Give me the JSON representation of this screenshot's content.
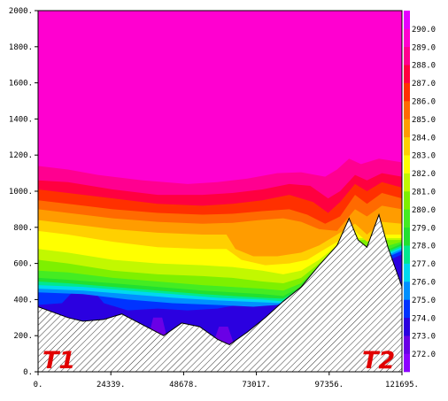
{
  "chart_data": {
    "type": "heatmap",
    "title": "",
    "xlabel": "",
    "ylabel": "",
    "xlim": [
      0,
      121695
    ],
    "ylim": [
      0,
      2000
    ],
    "x_ticks": [
      "0.",
      "24339.",
      "48678.",
      "73017.",
      "97356.",
      "121695."
    ],
    "y_ticks": [
      "0.",
      "200.",
      "400.",
      "600.",
      "800.",
      "1000.",
      "1200.",
      "1400.",
      "1600.",
      "1800.",
      "2000."
    ],
    "colorbar": {
      "levels": [
        "272.0",
        "273.0",
        "274.0",
        "275.0",
        "276.0",
        "277.0",
        "278.0",
        "279.0",
        "280.0",
        "281.0",
        "282.0",
        "283.0",
        "284.0",
        "285.0",
        "286.0",
        "287.0",
        "288.0",
        "289.0",
        "290.0"
      ],
      "colors": [
        "#8c00ff",
        "#6a00e6",
        "#2b00e0",
        "#0033ff",
        "#0090ff",
        "#00d8f0",
        "#00e890",
        "#22e030",
        "#44ec22",
        "#7ef000",
        "#c2f800",
        "#ffff00",
        "#ffd000",
        "#ff9c00",
        "#ff6a00",
        "#ff3000",
        "#ff0040",
        "#ff0090",
        "#ff00d0",
        "#e600ff"
      ]
    },
    "contours": [
      {
        "min": 290,
        "top": [
          [
            0,
            2000
          ],
          [
            121695,
            2000
          ]
        ]
      },
      {
        "min": 289,
        "top": [
          [
            0,
            1140
          ],
          [
            10000,
            1120
          ],
          [
            20000,
            1090
          ],
          [
            35000,
            1060
          ],
          [
            50000,
            1040
          ],
          [
            60000,
            1050
          ],
          [
            70000,
            1070
          ],
          [
            80000,
            1100
          ],
          [
            88000,
            1105
          ],
          [
            96000,
            1080
          ],
          [
            100000,
            1120
          ],
          [
            104000,
            1180
          ],
          [
            108000,
            1150
          ],
          [
            114000,
            1180
          ],
          [
            121695,
            1160
          ]
        ]
      },
      {
        "min": 288,
        "top": [
          [
            0,
            1060
          ],
          [
            10000,
            1050
          ],
          [
            25000,
            1010
          ],
          [
            40000,
            980
          ],
          [
            55000,
            980
          ],
          [
            65000,
            990
          ],
          [
            75000,
            1010
          ],
          [
            84000,
            1040
          ],
          [
            91000,
            1030
          ],
          [
            97000,
            960
          ],
          [
            101000,
            1000
          ],
          [
            106000,
            1090
          ],
          [
            110000,
            1060
          ],
          [
            115000,
            1100
          ],
          [
            121695,
            1080
          ]
        ]
      },
      {
        "min": 287,
        "top": [
          [
            0,
            1010
          ],
          [
            10000,
            990
          ],
          [
            25000,
            960
          ],
          [
            40000,
            930
          ],
          [
            55000,
            920
          ],
          [
            65000,
            930
          ],
          [
            75000,
            950
          ],
          [
            84000,
            980
          ],
          [
            92000,
            940
          ],
          [
            97000,
            880
          ],
          [
            101000,
            940
          ],
          [
            106000,
            1040
          ],
          [
            110000,
            1000
          ],
          [
            115000,
            1050
          ],
          [
            121695,
            1020
          ]
        ]
      },
      {
        "min": 286,
        "top": [
          [
            0,
            950
          ],
          [
            10000,
            930
          ],
          [
            25000,
            900
          ],
          [
            40000,
            880
          ],
          [
            55000,
            870
          ],
          [
            65000,
            875
          ],
          [
            75000,
            890
          ],
          [
            84000,
            900
          ],
          [
            90000,
            870
          ],
          [
            96000,
            820
          ],
          [
            101000,
            860
          ],
          [
            106000,
            980
          ],
          [
            110000,
            930
          ],
          [
            115000,
            990
          ],
          [
            121695,
            960
          ]
        ]
      },
      {
        "min": 285,
        "top": [
          [
            0,
            900
          ],
          [
            10000,
            880
          ],
          [
            25000,
            850
          ],
          [
            40000,
            830
          ],
          [
            55000,
            820
          ],
          [
            65000,
            825
          ],
          [
            74000,
            840
          ],
          [
            82000,
            850
          ],
          [
            88000,
            830
          ],
          [
            94000,
            790
          ],
          [
            100000,
            780
          ],
          [
            106000,
            900
          ],
          [
            110000,
            860
          ],
          [
            115000,
            920
          ],
          [
            121695,
            900
          ]
        ]
      },
      {
        "min": 284,
        "top": [
          [
            0,
            840
          ],
          [
            10000,
            820
          ],
          [
            25000,
            790
          ],
          [
            40000,
            770
          ],
          [
            55000,
            760
          ],
          [
            63000,
            760
          ],
          [
            66000,
            680
          ],
          [
            72000,
            640
          ],
          [
            80000,
            640
          ],
          [
            88000,
            660
          ],
          [
            94000,
            700
          ],
          [
            100000,
            760
          ],
          [
            106000,
            820
          ],
          [
            110000,
            760
          ],
          [
            115000,
            830
          ],
          [
            121695,
            820
          ]
        ]
      },
      {
        "min": 283,
        "top": [
          [
            0,
            780
          ],
          [
            10000,
            760
          ],
          [
            25000,
            720
          ],
          [
            40000,
            690
          ],
          [
            55000,
            680
          ],
          [
            63000,
            680
          ],
          [
            68000,
            620
          ],
          [
            76000,
            590
          ],
          [
            84000,
            600
          ],
          [
            90000,
            620
          ],
          [
            96000,
            680
          ],
          [
            102000,
            740
          ],
          [
            106000,
            780
          ],
          [
            110000,
            720
          ],
          [
            115000,
            760
          ],
          [
            121695,
            760
          ]
        ]
      },
      {
        "min": 282,
        "top": [
          [
            0,
            680
          ],
          [
            10000,
            660
          ],
          [
            25000,
            620
          ],
          [
            40000,
            600
          ],
          [
            55000,
            590
          ],
          [
            65000,
            580
          ],
          [
            75000,
            560
          ],
          [
            82000,
            540
          ],
          [
            88000,
            560
          ],
          [
            94000,
            620
          ],
          [
            100000,
            700
          ],
          [
            106000,
            740
          ],
          [
            121695,
            740
          ]
        ]
      },
      {
        "min": 281,
        "top": [
          [
            0,
            620
          ],
          [
            10000,
            600
          ],
          [
            25000,
            560
          ],
          [
            40000,
            540
          ],
          [
            55000,
            530
          ],
          [
            65000,
            520
          ],
          [
            75000,
            500
          ],
          [
            82000,
            490
          ],
          [
            88000,
            520
          ],
          [
            94000,
            600
          ],
          [
            100000,
            690
          ],
          [
            106000,
            730
          ],
          [
            121695,
            730
          ]
        ]
      },
      {
        "min": 280,
        "top": [
          [
            0,
            560
          ],
          [
            10000,
            550
          ],
          [
            25000,
            520
          ],
          [
            40000,
            500
          ],
          [
            55000,
            480
          ],
          [
            65000,
            470
          ],
          [
            75000,
            460
          ],
          [
            82000,
            450
          ],
          [
            88000,
            490
          ],
          [
            94000,
            590
          ],
          [
            121695,
            720
          ]
        ]
      },
      {
        "min": 279,
        "top": [
          [
            0,
            520
          ],
          [
            10000,
            510
          ],
          [
            25000,
            490
          ],
          [
            40000,
            470
          ],
          [
            55000,
            450
          ],
          [
            65000,
            440
          ],
          [
            75000,
            430
          ],
          [
            82000,
            420
          ],
          [
            88000,
            470
          ],
          [
            121695,
            710
          ]
        ]
      },
      {
        "min": 278,
        "top": [
          [
            0,
            500
          ],
          [
            10000,
            490
          ],
          [
            25000,
            470
          ],
          [
            40000,
            450
          ],
          [
            55000,
            430
          ],
          [
            65000,
            420
          ],
          [
            75000,
            410
          ],
          [
            82000,
            405
          ],
          [
            88000,
            460
          ],
          [
            121695,
            700
          ]
        ]
      },
      {
        "min": 277,
        "top": [
          [
            0,
            480
          ],
          [
            15000,
            470
          ],
          [
            30000,
            450
          ],
          [
            45000,
            430
          ],
          [
            60000,
            410
          ],
          [
            75000,
            400
          ],
          [
            82000,
            390
          ],
          [
            88000,
            450
          ],
          [
            121695,
            690
          ]
        ]
      },
      {
        "min": 276,
        "top": [
          [
            0,
            460
          ],
          [
            15000,
            450
          ],
          [
            30000,
            430
          ],
          [
            45000,
            410
          ],
          [
            60000,
            395
          ],
          [
            75000,
            385
          ],
          [
            82000,
            380
          ],
          [
            88000,
            440
          ],
          [
            121695,
            680
          ]
        ]
      },
      {
        "min": 275,
        "top": [
          [
            0,
            440
          ],
          [
            15000,
            430
          ],
          [
            30000,
            400
          ],
          [
            45000,
            380
          ],
          [
            60000,
            370
          ],
          [
            72000,
            360
          ],
          [
            80000,
            370
          ],
          [
            88000,
            430
          ],
          [
            121695,
            670
          ]
        ]
      },
      {
        "min": 274,
        "top": [
          [
            0,
            370
          ],
          [
            8000,
            380
          ],
          [
            12000,
            450
          ],
          [
            18000,
            460
          ],
          [
            22000,
            380
          ],
          [
            30000,
            340
          ],
          [
            40000,
            350
          ],
          [
            50000,
            340
          ],
          [
            60000,
            350
          ],
          [
            70000,
            380
          ],
          [
            76000,
            400
          ],
          [
            82000,
            360
          ],
          [
            88000,
            400
          ],
          [
            121695,
            650
          ]
        ]
      },
      {
        "min": 273,
        "top": [
          [
            0,
            0
          ],
          [
            121695,
            0
          ]
        ]
      },
      {
        "min": 272,
        "top": [
          [
            0,
            0
          ],
          [
            121695,
            0
          ]
        ]
      }
    ],
    "blobs_273": [
      {
        "x": [
          36000,
          44000
        ],
        "peak": 300
      },
      {
        "x": [
          58000,
          66000
        ],
        "peak": 250
      }
    ],
    "terrain": [
      [
        0,
        360
      ],
      [
        5000,
        330
      ],
      [
        10000,
        300
      ],
      [
        15000,
        280
      ],
      [
        22000,
        290
      ],
      [
        28000,
        320
      ],
      [
        35000,
        260
      ],
      [
        42000,
        200
      ],
      [
        48000,
        270
      ],
      [
        54000,
        250
      ],
      [
        60000,
        180
      ],
      [
        64000,
        150
      ],
      [
        70000,
        220
      ],
      [
        76000,
        300
      ],
      [
        82000,
        390
      ],
      [
        88000,
        470
      ],
      [
        94000,
        590
      ],
      [
        100000,
        700
      ],
      [
        104000,
        850
      ],
      [
        107000,
        730
      ],
      [
        110000,
        690
      ],
      [
        114000,
        870
      ],
      [
        117000,
        690
      ],
      [
        121695,
        470
      ]
    ],
    "end_labels": [
      "T1",
      "T2"
    ]
  }
}
